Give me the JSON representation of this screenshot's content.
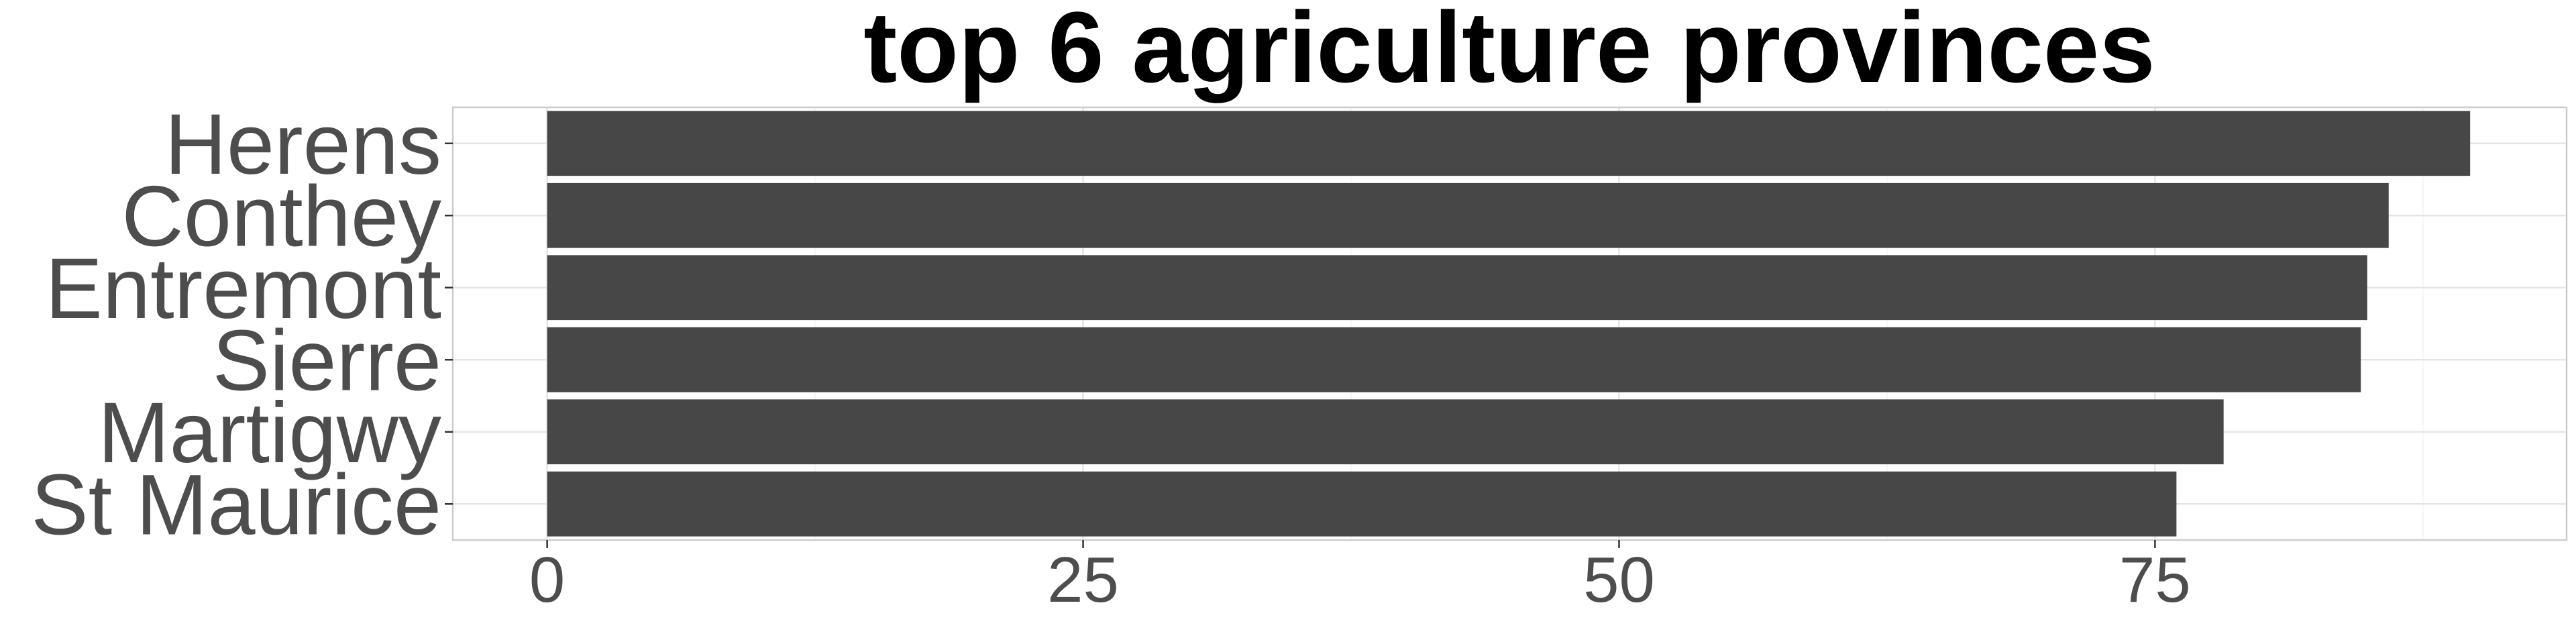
{
  "chart_data": {
    "type": "bar",
    "orientation": "horizontal",
    "title": "top 6 agriculture provinces",
    "xlabel": "",
    "ylabel": "",
    "categories": [
      "Herens",
      "Conthey",
      "Entremont",
      "Sierre",
      "Martigwy",
      "St Maurice"
    ],
    "values": [
      89.7,
      85.9,
      84.9,
      84.6,
      78.2,
      76.0
    ],
    "xlim": [
      -4.4,
      94.2
    ],
    "x_ticks": [
      0,
      25,
      50,
      75
    ],
    "grid": true,
    "legend": "none",
    "colors": {
      "bar": "#474747",
      "panel_border": "#cccccc",
      "grid_major": "#e5e5e5",
      "grid_minor": "#f2f2f2",
      "axis_text": "#4d4d4d",
      "title": "#000000"
    }
  }
}
